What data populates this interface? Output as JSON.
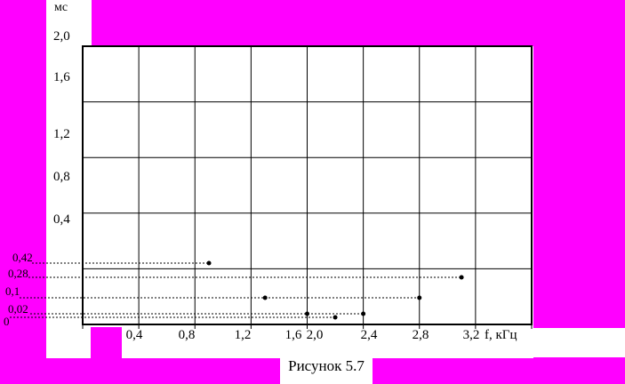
{
  "figure": {
    "caption": "Рисунок 5.7"
  },
  "axes": {
    "y_unit": "мс",
    "y_ticks": [
      "2,0",
      "1,6",
      "1,2",
      "0,8",
      "0,4"
    ],
    "x_ticks": [
      "0,4",
      "0,8",
      "1,2",
      "1,6",
      "2,0",
      "2,4",
      "2,8",
      "3,2"
    ],
    "x_unit": "f, кГц",
    "leader_labels": [
      "0,42",
      "0,28",
      "0,1",
      "0,02",
      "0"
    ]
  },
  "colors": {
    "background": "#ff00ff",
    "plot_background": "#ffffff",
    "ink": "#000000"
  },
  "chart_data": {
    "type": "scatter",
    "title": "Рисунок 5.7",
    "xlabel": "f, кГц",
    "ylabel": "мс",
    "x": [
      0.9,
      1.3,
      1.6,
      1.8,
      2.0,
      2.4,
      2.7
    ],
    "y": [
      0.42,
      0.1,
      0.02,
      0,
      0.02,
      0.1,
      0.28
    ],
    "xlim": [
      0,
      3.2
    ],
    "ylim": [
      0,
      2
    ],
    "x_grid_step": 0.4,
    "y_grid_step": 0.4,
    "grid": true,
    "marker": "dot",
    "annotations": [
      "0,42",
      "0,28",
      "0,1",
      "0,02",
      "0"
    ],
    "annotation_style": "dotted-leader-lines-from-left-margin"
  }
}
